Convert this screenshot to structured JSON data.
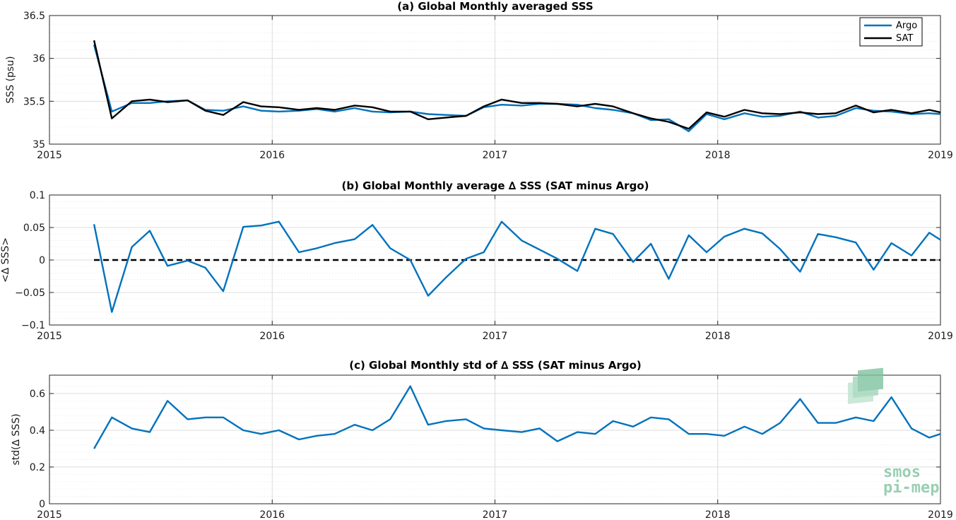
{
  "colors": {
    "argo": "#0072bd",
    "sat": "#000000",
    "zero_line": "#000000",
    "grid": "#dcdcdc",
    "logo": "#7fc4a0"
  },
  "logo": {
    "line1": "smos",
    "line2": "pi-mep"
  },
  "chart_data": [
    {
      "type": "line",
      "title": "(a) Global Monthly averaged SSS",
      "xlabel": "",
      "ylabel": "SSS (psu)",
      "xlim": [
        2015,
        2019
      ],
      "ylim": [
        35,
        36.5
      ],
      "xticks": [
        2015,
        2016,
        2017,
        2018,
        2019
      ],
      "xtick_labels": [
        "2015",
        "2016",
        "2017",
        "2018",
        "2019"
      ],
      "yticks": [
        35,
        35.5,
        36,
        36.5
      ],
      "ytick_labels": [
        "35",
        "35.5",
        "36",
        "36.5"
      ],
      "grid": true,
      "legend": {
        "position": "top-right",
        "entries": [
          "Argo",
          "SAT"
        ]
      },
      "x": [
        2015.2,
        2015.28,
        2015.37,
        2015.45,
        2015.53,
        2015.62,
        2015.7,
        2015.78,
        2015.87,
        2015.95,
        2016.03,
        2016.12,
        2016.2,
        2016.28,
        2016.37,
        2016.45,
        2016.53,
        2016.62,
        2016.7,
        2016.78,
        2016.87,
        2016.95,
        2017.03,
        2017.12,
        2017.2,
        2017.28,
        2017.37,
        2017.45,
        2017.53,
        2017.62,
        2017.7,
        2017.78,
        2017.87,
        2017.95,
        2018.03,
        2018.12,
        2018.2,
        2018.28,
        2018.37,
        2018.45,
        2018.53,
        2018.62,
        2018.7,
        2018.78,
        2018.87,
        2018.95,
        2019.0
      ],
      "series": [
        {
          "name": "Argo",
          "values": [
            36.16,
            35.38,
            35.48,
            35.48,
            35.5,
            35.51,
            35.4,
            35.39,
            35.44,
            35.39,
            35.38,
            35.39,
            35.41,
            35.38,
            35.42,
            35.38,
            35.37,
            35.38,
            35.35,
            35.34,
            35.33,
            35.43,
            35.46,
            35.45,
            35.47,
            35.47,
            35.46,
            35.42,
            35.4,
            35.36,
            35.28,
            35.29,
            35.15,
            35.35,
            35.29,
            35.36,
            35.32,
            35.33,
            35.38,
            35.31,
            35.33,
            35.42,
            35.39,
            35.38,
            35.35,
            35.36,
            35.35
          ]
        },
        {
          "name": "SAT",
          "values": [
            36.21,
            35.3,
            35.5,
            35.52,
            35.49,
            35.51,
            35.39,
            35.34,
            35.49,
            35.44,
            35.43,
            35.4,
            35.42,
            35.4,
            35.45,
            35.43,
            35.38,
            35.38,
            35.29,
            35.31,
            35.33,
            35.44,
            35.52,
            35.48,
            35.48,
            35.47,
            35.44,
            35.47,
            35.44,
            35.36,
            35.3,
            35.26,
            35.18,
            35.37,
            35.32,
            35.4,
            35.36,
            35.35,
            35.37,
            35.35,
            35.36,
            35.45,
            35.37,
            35.4,
            35.36,
            35.4,
            35.37
          ]
        }
      ]
    },
    {
      "type": "line",
      "title": "(b) Global Monthly average ∆ SSS (SAT minus Argo)",
      "xlabel": "",
      "ylabel": "<∆ SSS>",
      "xlim": [
        2015,
        2019
      ],
      "ylim": [
        -0.1,
        0.1
      ],
      "xticks": [
        2015,
        2016,
        2017,
        2018,
        2019
      ],
      "xtick_labels": [
        "2015",
        "2016",
        "2017",
        "2018",
        "2019"
      ],
      "yticks": [
        -0.1,
        -0.05,
        0,
        0.05,
        0.1
      ],
      "ytick_labels": [
        "−0.1",
        "−0.05",
        "0",
        "0.05",
        "0.1"
      ],
      "grid": true,
      "reference_line": {
        "y": 0,
        "style": "dashed",
        "x": [
          2015.2,
          2019.0
        ]
      },
      "x": [
        2015.2,
        2015.28,
        2015.37,
        2015.45,
        2015.53,
        2015.62,
        2015.7,
        2015.78,
        2015.87,
        2015.95,
        2016.03,
        2016.12,
        2016.2,
        2016.28,
        2016.37,
        2016.45,
        2016.53,
        2016.62,
        2016.7,
        2016.78,
        2016.87,
        2016.95,
        2017.03,
        2017.12,
        2017.2,
        2017.28,
        2017.37,
        2017.45,
        2017.53,
        2017.62,
        2017.7,
        2017.78,
        2017.87,
        2017.95,
        2018.03,
        2018.12,
        2018.2,
        2018.28,
        2018.37,
        2018.45,
        2018.53,
        2018.62,
        2018.7,
        2018.78,
        2018.87,
        2018.95,
        2019.0
      ],
      "series": [
        {
          "name": "",
          "values": [
            0.055,
            -0.08,
            0.02,
            0.045,
            -0.009,
            -0.001,
            -0.012,
            -0.048,
            0.051,
            0.053,
            0.059,
            0.012,
            0.018,
            0.026,
            0.032,
            0.054,
            0.018,
            0.0,
            -0.055,
            -0.027,
            0.002,
            0.012,
            0.059,
            0.03,
            0.016,
            0.002,
            -0.017,
            0.048,
            0.04,
            -0.003,
            0.025,
            -0.029,
            0.038,
            0.012,
            0.036,
            0.048,
            0.041,
            0.017,
            -0.018,
            0.04,
            0.035,
            0.027,
            -0.015,
            0.026,
            0.007,
            0.042,
            0.031
          ]
        }
      ]
    },
    {
      "type": "line",
      "title": "(c) Global Monthly std of ∆ SSS (SAT minus Argo)",
      "xlabel": "",
      "ylabel": "std(∆ SSS)",
      "xlim": [
        2015,
        2019
      ],
      "ylim": [
        0,
        0.7
      ],
      "xticks": [
        2015,
        2016,
        2017,
        2018,
        2019
      ],
      "xtick_labels": [
        "2015",
        "2016",
        "2017",
        "2018",
        "2019"
      ],
      "yticks": [
        0,
        0.2,
        0.4,
        0.6
      ],
      "ytick_labels": [
        "0",
        "0.2",
        "0.4",
        "0.6"
      ],
      "grid": true,
      "x": [
        2015.2,
        2015.28,
        2015.37,
        2015.45,
        2015.53,
        2015.62,
        2015.7,
        2015.78,
        2015.87,
        2015.95,
        2016.03,
        2016.12,
        2016.2,
        2016.28,
        2016.37,
        2016.45,
        2016.53,
        2016.62,
        2016.7,
        2016.78,
        2016.87,
        2016.95,
        2017.03,
        2017.12,
        2017.2,
        2017.28,
        2017.37,
        2017.45,
        2017.53,
        2017.62,
        2017.7,
        2017.78,
        2017.87,
        2017.95,
        2018.03,
        2018.12,
        2018.2,
        2018.28,
        2018.37,
        2018.45,
        2018.53,
        2018.62,
        2018.7,
        2018.78,
        2018.87,
        2018.95,
        2019.0
      ],
      "series": [
        {
          "name": "",
          "values": [
            0.3,
            0.47,
            0.41,
            0.39,
            0.56,
            0.46,
            0.47,
            0.47,
            0.4,
            0.38,
            0.4,
            0.35,
            0.37,
            0.38,
            0.43,
            0.4,
            0.46,
            0.64,
            0.43,
            0.45,
            0.46,
            0.41,
            0.4,
            0.39,
            0.41,
            0.34,
            0.39,
            0.38,
            0.45,
            0.42,
            0.47,
            0.46,
            0.38,
            0.38,
            0.37,
            0.42,
            0.38,
            0.44,
            0.57,
            0.44,
            0.44,
            0.47,
            0.45,
            0.58,
            0.41,
            0.36,
            0.38
          ]
        }
      ]
    }
  ]
}
